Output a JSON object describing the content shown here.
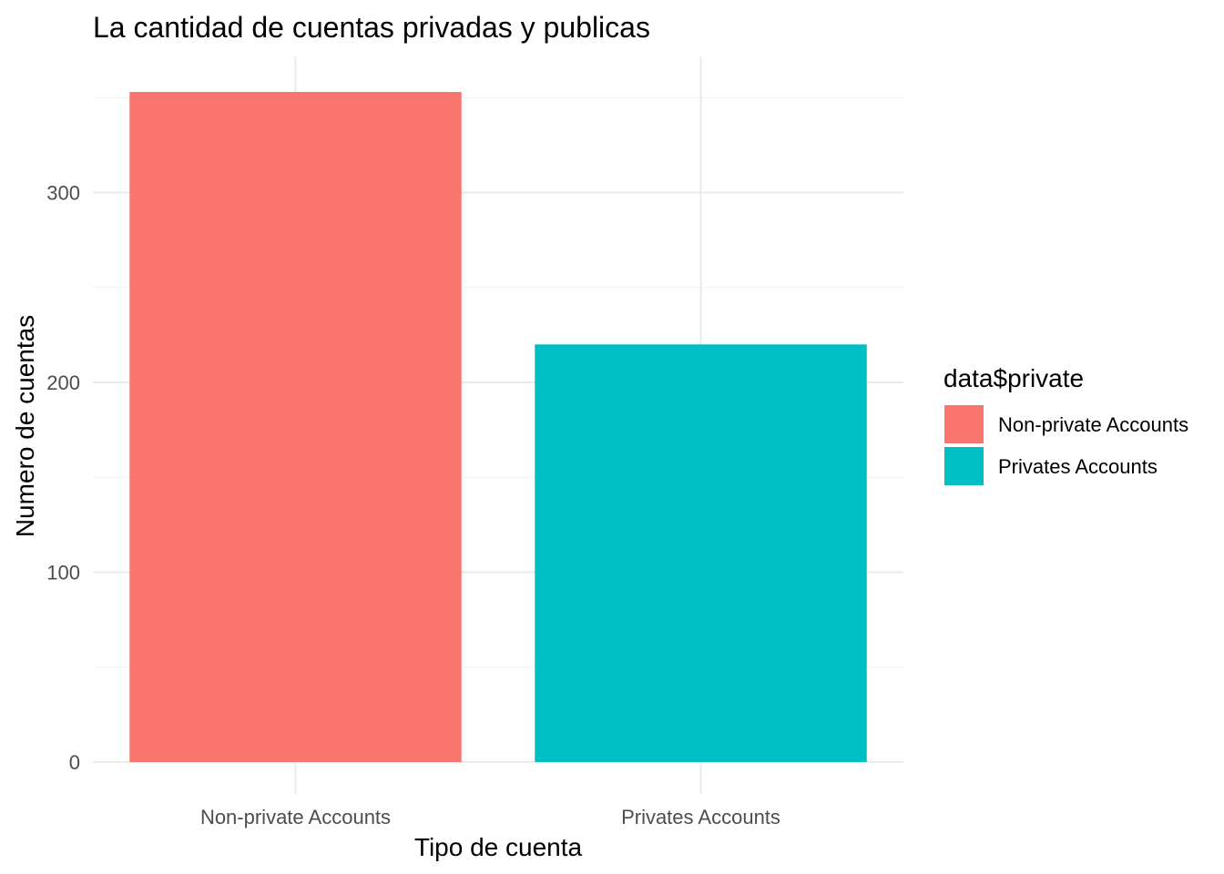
{
  "chart_data": {
    "type": "bar",
    "title": "La cantidad de cuentas privadas y publicas",
    "xlabel": "Tipo de cuenta",
    "ylabel": "Numero de cuentas",
    "categories": [
      "Non-private Accounts",
      "Privates Accounts"
    ],
    "values": [
      353,
      220
    ],
    "colors": [
      "#F8766D",
      "#00BFC4"
    ],
    "ylim": [
      0,
      370
    ],
    "yticks": [
      0,
      100,
      200,
      300
    ],
    "grid": true,
    "legend": {
      "title": "data$private",
      "placement": "right",
      "entries": [
        "Non-private Accounts",
        "Privates Accounts"
      ]
    }
  }
}
